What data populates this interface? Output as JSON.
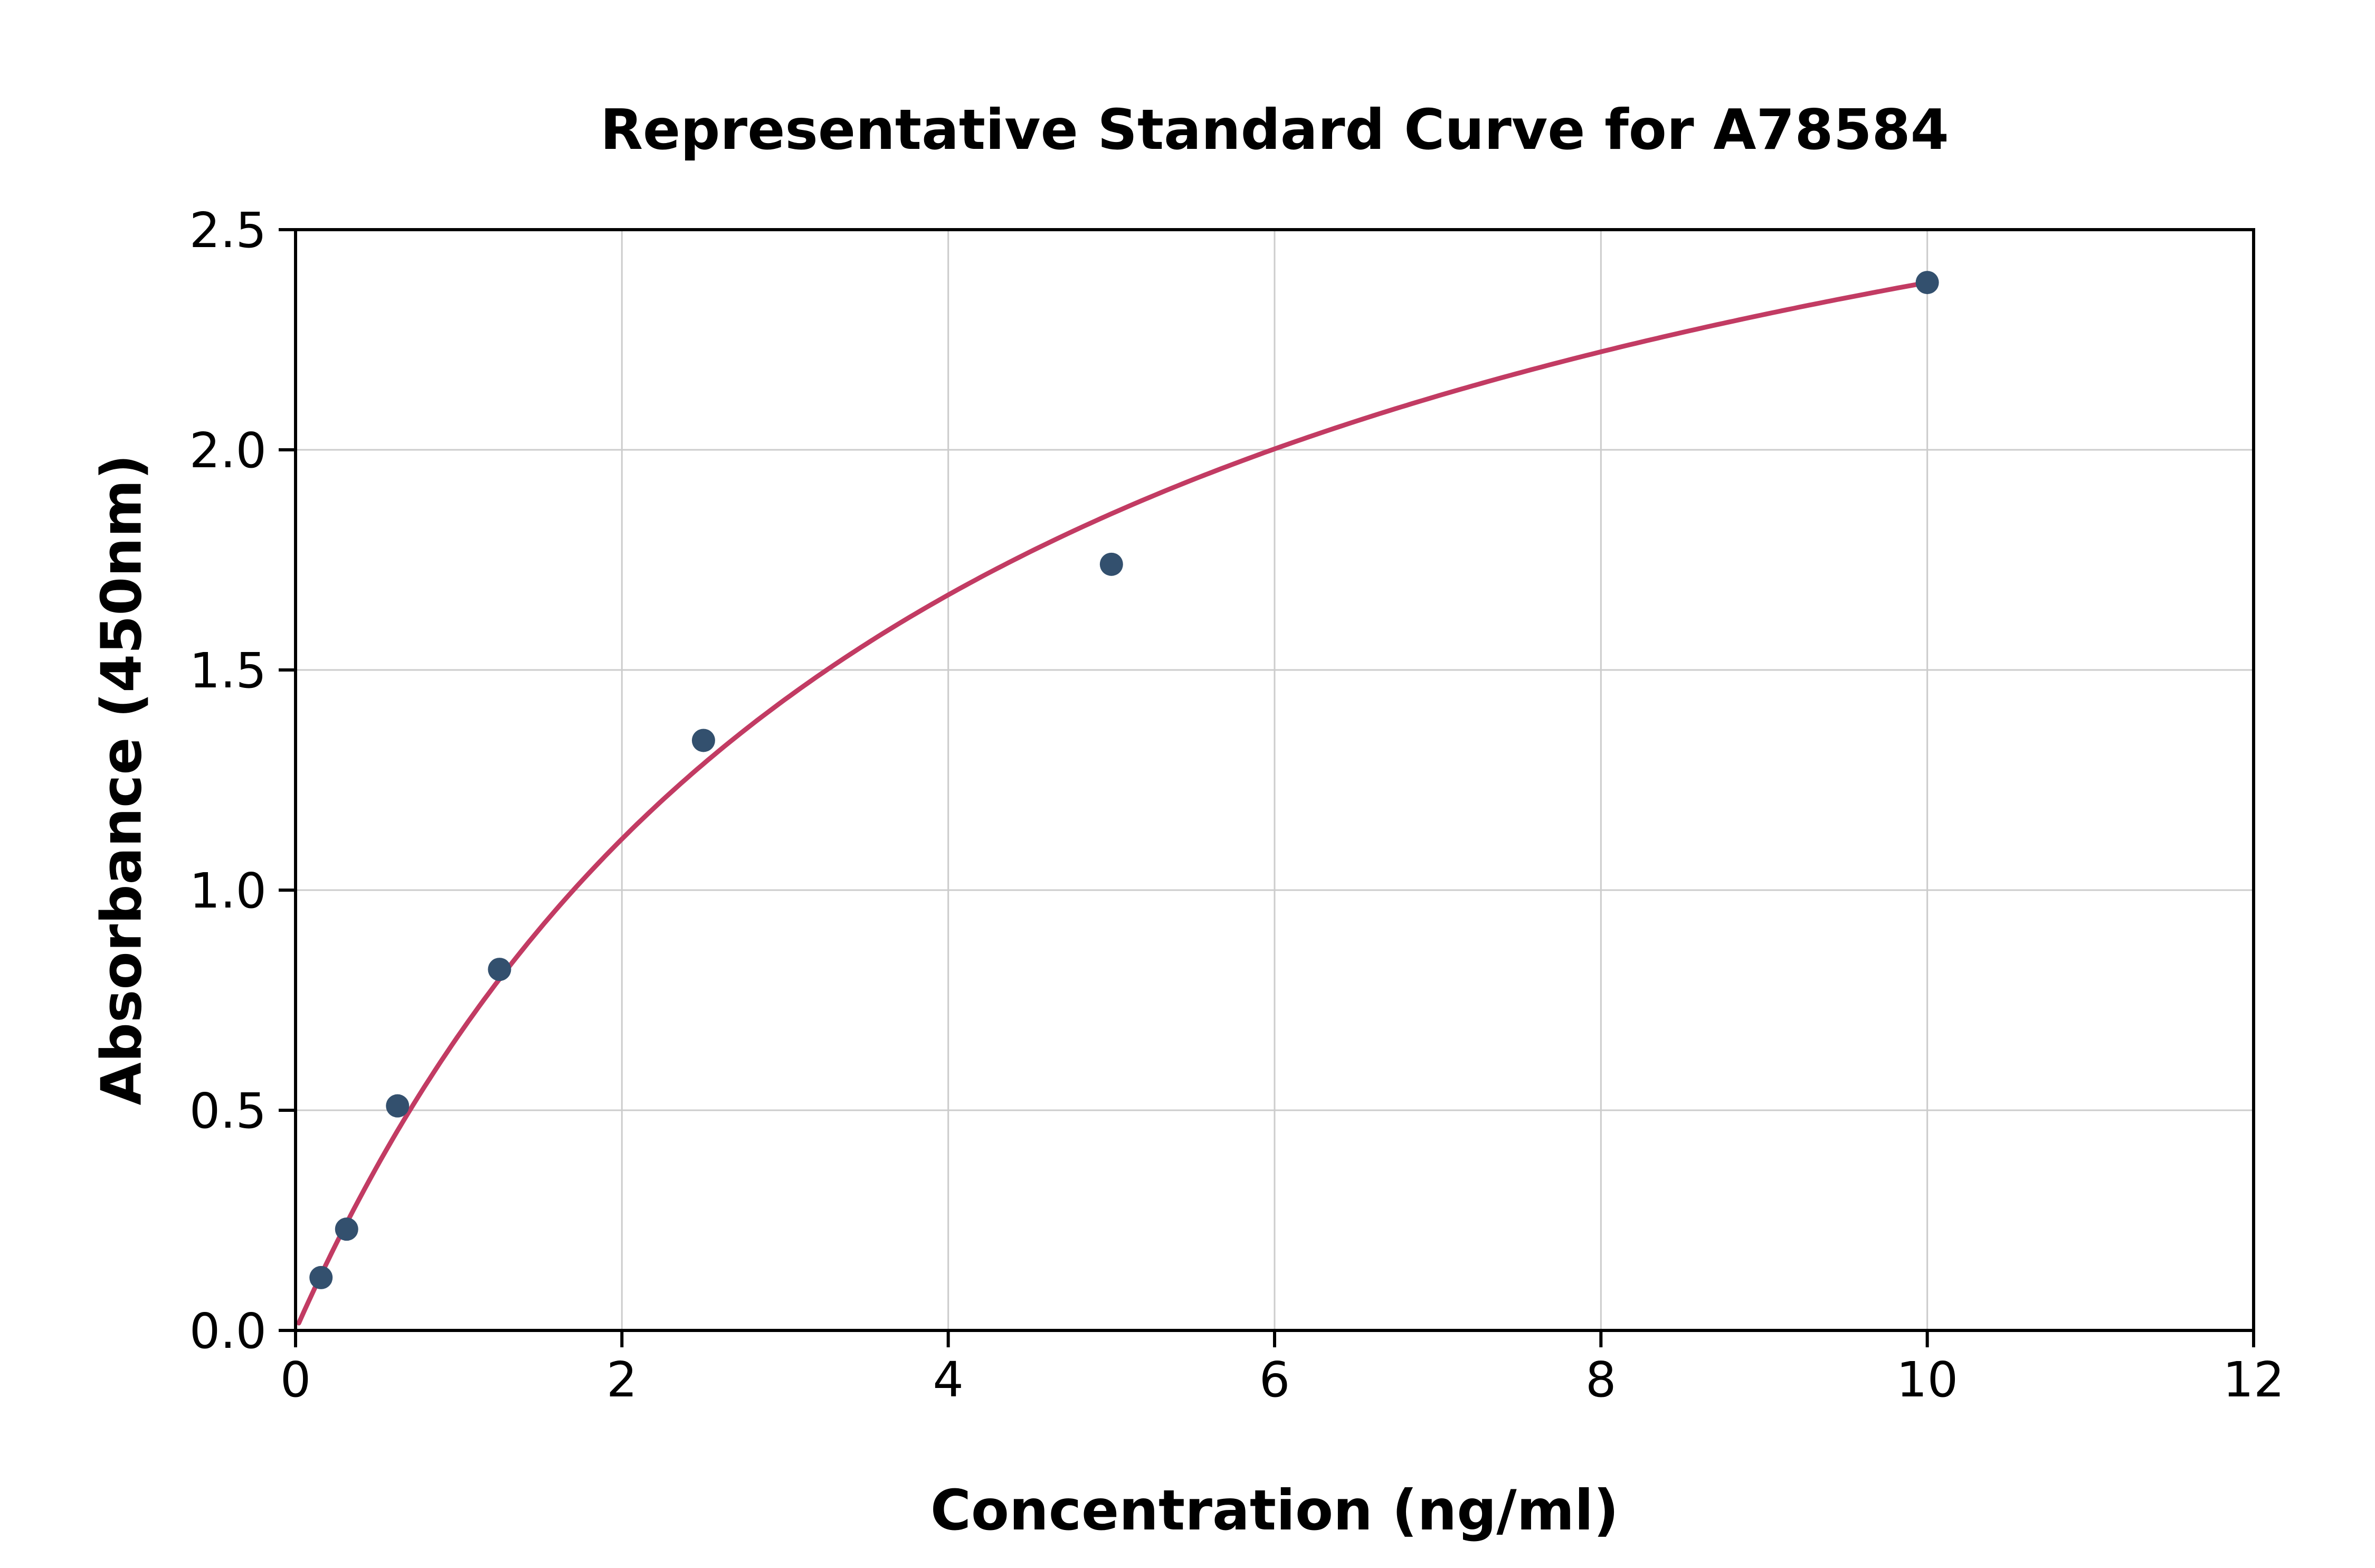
{
  "chart_data": {
    "type": "scatter",
    "title": "Representative Standard Curve for A78584",
    "xlabel": "Concentration (ng/ml)",
    "ylabel": "Absorbance (450nm)",
    "xlim": [
      0,
      12
    ],
    "ylim": [
      0,
      2.5
    ],
    "grid": true,
    "legend": "none",
    "xticks": [
      {
        "v": 0,
        "label": "0"
      },
      {
        "v": 2,
        "label": "2"
      },
      {
        "v": 4,
        "label": "4"
      },
      {
        "v": 6,
        "label": "6"
      },
      {
        "v": 8,
        "label": "8"
      },
      {
        "v": 10,
        "label": "10"
      },
      {
        "v": 12,
        "label": "12"
      }
    ],
    "yticks": [
      {
        "v": 0.0,
        "label": "0.0"
      },
      {
        "v": 0.5,
        "label": "0.5"
      },
      {
        "v": 1.0,
        "label": "1.0"
      },
      {
        "v": 1.5,
        "label": "1.5"
      },
      {
        "v": 2.0,
        "label": "2.0"
      },
      {
        "v": 2.5,
        "label": "2.5"
      }
    ],
    "points": [
      {
        "x": 0.156,
        "y": 0.12
      },
      {
        "x": 0.313,
        "y": 0.23
      },
      {
        "x": 0.625,
        "y": 0.51
      },
      {
        "x": 1.25,
        "y": 0.82
      },
      {
        "x": 2.5,
        "y": 1.34
      },
      {
        "x": 5.0,
        "y": 1.74
      },
      {
        "x": 10.0,
        "y": 2.38
      }
    ],
    "fit_curve": {
      "model": "michaelis_menten",
      "A": 3.32,
      "B": 3.95,
      "x_start": 0.02,
      "x_end": 10.05
    },
    "colors": {
      "point": "#33506e",
      "curve": "#c23b63",
      "grid": "#cccccc",
      "axis": "#000000",
      "background": "#ffffff"
    }
  }
}
